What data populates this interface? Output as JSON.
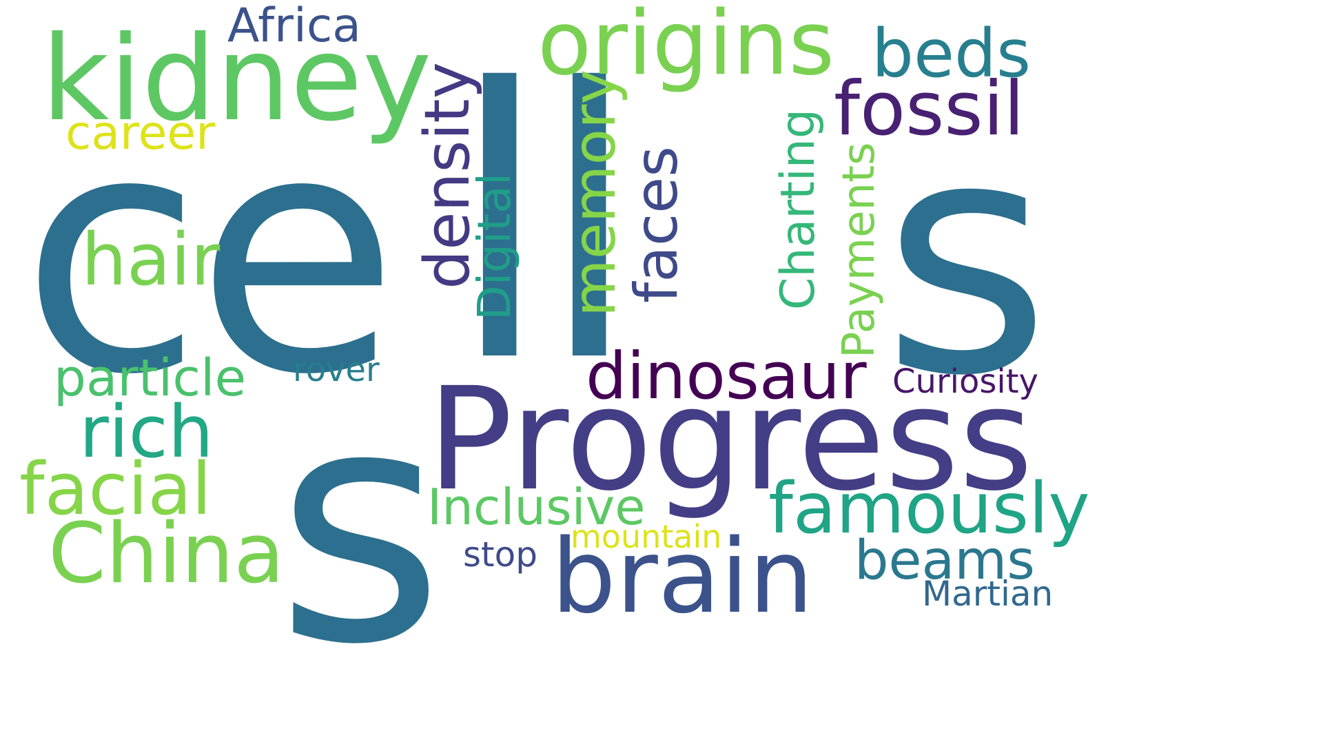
{
  "words": {
    "cells_c": {
      "text": "ce",
      "color": "#2d6f8e"
    },
    "cells_ll": {
      "text": "ll",
      "color": "#2d6f8e"
    },
    "cells_s": {
      "text": "s",
      "color": "#2d6f8e"
    },
    "s": {
      "text": "s",
      "color": "#2d6f8e"
    },
    "progress": {
      "text": "Progress",
      "color": "#433e85"
    },
    "kidney": {
      "text": "kidney",
      "color": "#5dc863"
    },
    "origins": {
      "text": "origins",
      "color": "#7ad151"
    },
    "africa": {
      "text": "Africa",
      "color": "#3b528b"
    },
    "beds": {
      "text": "beds",
      "color": "#277f8e"
    },
    "fossil": {
      "text": "fossil",
      "color": "#482173"
    },
    "career": {
      "text": "career",
      "color": "#dde318"
    },
    "density": {
      "text": "density",
      "color": "#443983"
    },
    "memory": {
      "text": "memory",
      "color": "#86d549"
    },
    "faces": {
      "text": "faces",
      "color": "#3e4a89"
    },
    "charting": {
      "text": "Charting",
      "color": "#35b779"
    },
    "digital": {
      "text": "Digital",
      "color": "#1f9e89"
    },
    "payments": {
      "text": "Payments",
      "color": "#7ad151"
    },
    "hair": {
      "text": "hair",
      "color": "#7ad151"
    },
    "dinosaur": {
      "text": "dinosaur",
      "color": "#440154"
    },
    "curiosity": {
      "text": "Curiosity",
      "color": "#481668"
    },
    "particle": {
      "text": "particle",
      "color": "#4ac16d"
    },
    "rover": {
      "text": "rover",
      "color": "#277f8e"
    },
    "rich": {
      "text": "rich",
      "color": "#22a884"
    },
    "facial": {
      "text": "facial",
      "color": "#86d549"
    },
    "china": {
      "text": "China",
      "color": "#7ad151"
    },
    "inclusive": {
      "text": "Inclusive",
      "color": "#5dc863"
    },
    "famously": {
      "text": "famously",
      "color": "#20a486"
    },
    "mountain": {
      "text": "mountain",
      "color": "#dde318"
    },
    "stop": {
      "text": "stop",
      "color": "#3e4a89"
    },
    "brain": {
      "text": "brain",
      "color": "#3b528b"
    },
    "beams": {
      "text": "beams",
      "color": "#2a788e"
    },
    "martian": {
      "text": "Martian",
      "color": "#31688e"
    }
  }
}
